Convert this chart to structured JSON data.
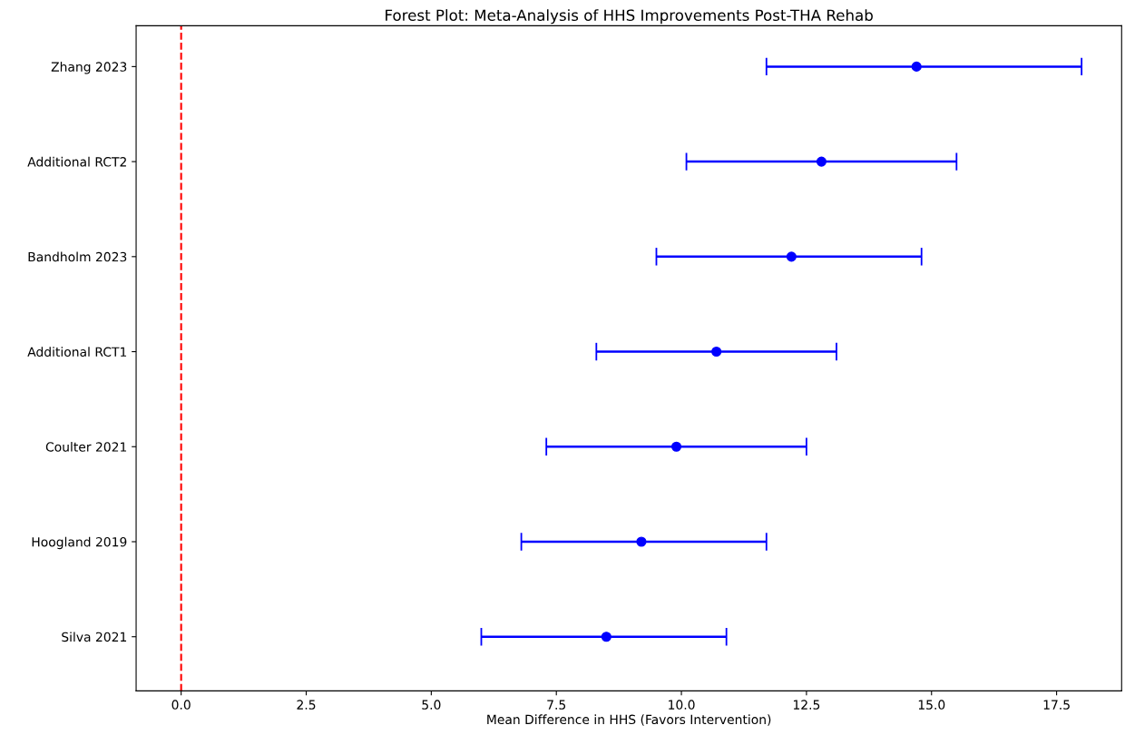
{
  "chart_data": {
    "type": "scatter",
    "orientation": "horizontal",
    "title": "Forest Plot: Meta-Analysis of HHS Improvements Post-THA Rehab",
    "xlabel": "Mean Difference in HHS (Favors Intervention)",
    "categories": [
      "Zhang 2023",
      "Additional RCT2",
      "Bandholm 2023",
      "Additional RCT1",
      "Coulter 2021",
      "Hoogland 2019",
      "Silva 2021"
    ],
    "values": [
      14.7,
      12.8,
      12.2,
      10.7,
      9.9,
      9.2,
      8.5
    ],
    "errors": [
      [
        11.7,
        18.0
      ],
      [
        10.1,
        15.5
      ],
      [
        9.5,
        14.8
      ],
      [
        8.3,
        13.1
      ],
      [
        7.3,
        12.5
      ],
      [
        6.8,
        11.7
      ],
      [
        6.0,
        10.9
      ]
    ],
    "color": "#0000ff",
    "marker": "circle",
    "xlim": [
      -0.9,
      18.8
    ],
    "xticks": [
      {
        "value": 0,
        "label": "0.0"
      },
      {
        "value": 2.5,
        "label": "2.5"
      },
      {
        "value": 5,
        "label": "5.0"
      },
      {
        "value": 7.5,
        "label": "7.5"
      },
      {
        "value": 10,
        "label": "10.0"
      },
      {
        "value": 12.5,
        "label": "12.5"
      },
      {
        "value": 15,
        "label": "15.0"
      },
      {
        "value": 17.5,
        "label": "17.5"
      }
    ],
    "ref_lines": [
      {
        "axis": "x",
        "value": 0,
        "color": "#ff0000",
        "line_style": "dashed"
      }
    ],
    "grid": false
  }
}
